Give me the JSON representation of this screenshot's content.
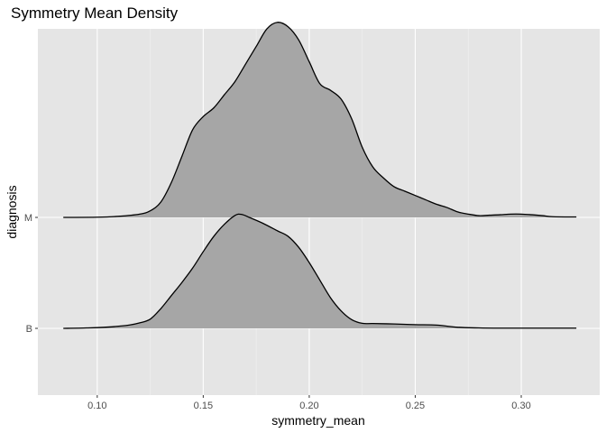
{
  "chart_data": {
    "type": "area",
    "subtype": "ridgeline-density",
    "title": "Symmetry Mean Density",
    "xlabel": "symmetry_mean",
    "ylabel": "diagnosis",
    "xlim": [
      0.072,
      0.337
    ],
    "x_ticks": [
      0.1,
      0.15,
      0.2,
      0.25,
      0.3
    ],
    "x_tick_labels": [
      "0.10",
      "0.15",
      "0.20",
      "0.25",
      "0.30"
    ],
    "categories": [
      "B",
      "M"
    ],
    "grid": true,
    "panel_background": "#e5e5e5",
    "fill_color": "#a6a6a6",
    "series": [
      {
        "name": "B",
        "x": [
          0.084,
          0.095,
          0.105,
          0.115,
          0.12,
          0.125,
          0.13,
          0.135,
          0.14,
          0.145,
          0.15,
          0.155,
          0.16,
          0.165,
          0.168,
          0.172,
          0.178,
          0.185,
          0.19,
          0.195,
          0.2,
          0.205,
          0.21,
          0.215,
          0.22,
          0.225,
          0.23,
          0.24,
          0.25,
          0.26,
          0.27,
          0.28,
          0.29,
          0.3,
          0.31,
          0.326
        ],
        "y": [
          0.0,
          0.02,
          0.06,
          0.15,
          0.25,
          0.42,
          0.9,
          1.5,
          2.1,
          2.75,
          3.5,
          4.2,
          4.75,
          5.15,
          5.2,
          5.05,
          4.8,
          4.45,
          4.2,
          3.7,
          3.0,
          2.2,
          1.4,
          0.8,
          0.4,
          0.23,
          0.22,
          0.2,
          0.17,
          0.15,
          0.05,
          0.02,
          0.01,
          0.01,
          0.01,
          0.01
        ]
      },
      {
        "name": "M",
        "x": [
          0.084,
          0.1,
          0.11,
          0.12,
          0.125,
          0.13,
          0.135,
          0.14,
          0.145,
          0.15,
          0.155,
          0.16,
          0.165,
          0.17,
          0.175,
          0.18,
          0.185,
          0.19,
          0.195,
          0.2,
          0.205,
          0.21,
          0.215,
          0.22,
          0.225,
          0.23,
          0.235,
          0.24,
          0.245,
          0.25,
          0.255,
          0.26,
          0.265,
          0.27,
          0.275,
          0.28,
          0.285,
          0.29,
          0.295,
          0.3,
          0.305,
          0.31,
          0.315,
          0.326
        ],
        "y": [
          0.0,
          0.01,
          0.05,
          0.15,
          0.3,
          0.7,
          1.6,
          2.8,
          4.0,
          4.6,
          5.0,
          5.6,
          6.2,
          7.0,
          7.8,
          8.6,
          8.9,
          8.7,
          8.1,
          7.1,
          6.1,
          5.8,
          5.4,
          4.5,
          3.2,
          2.3,
          1.8,
          1.4,
          1.2,
          1.0,
          0.8,
          0.6,
          0.45,
          0.25,
          0.15,
          0.08,
          0.1,
          0.12,
          0.15,
          0.15,
          0.12,
          0.08,
          0.03,
          0.02
        ]
      }
    ]
  }
}
